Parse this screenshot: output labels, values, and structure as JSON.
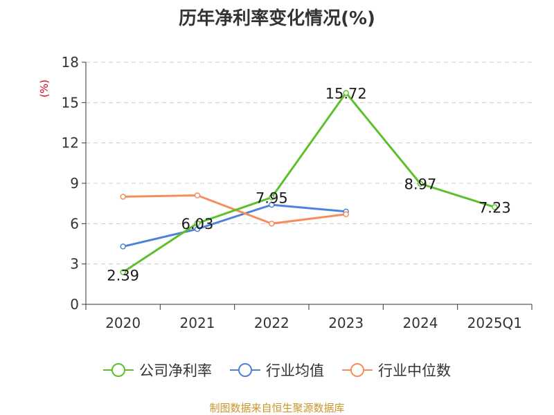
{
  "chart_data": {
    "type": "line",
    "title": "历年净利率变化情况(%)",
    "ylabel": "(%)",
    "categories": [
      "2020",
      "2021",
      "2022",
      "2023",
      "2024",
      "2025Q1"
    ],
    "ylim": [
      0,
      18
    ],
    "yticks": [
      0,
      3,
      6,
      9,
      12,
      15,
      18
    ],
    "grid": true,
    "legend_position": "bottom",
    "series": [
      {
        "name": "公司净利率",
        "color": "#5cc02b",
        "values": [
          2.39,
          6.03,
          7.95,
          15.72,
          8.97,
          7.23
        ],
        "labels": [
          "2.39",
          "6.03",
          "7.95",
          "15.72",
          "8.97",
          "7.23"
        ]
      },
      {
        "name": "行业均值",
        "color": "#4f81db",
        "values": [
          4.3,
          5.6,
          7.4,
          6.9,
          null,
          null
        ]
      },
      {
        "name": "行业中位数",
        "color": "#f58e5a",
        "values": [
          8.0,
          8.1,
          6.0,
          6.7,
          null,
          null
        ]
      }
    ]
  },
  "source": "制图数据来自恒生聚源数据库"
}
